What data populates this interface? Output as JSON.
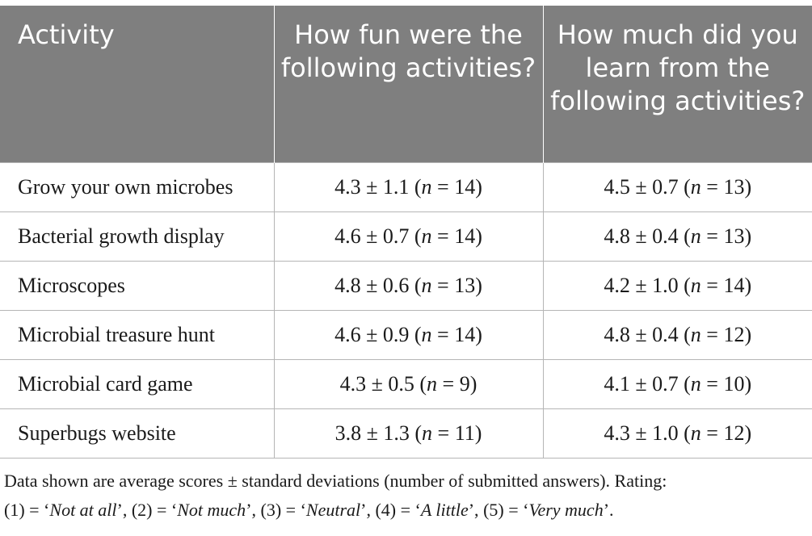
{
  "table": {
    "headers": [
      "Activity",
      "How fun were the following activities?",
      "How much did you learn from the following activities?"
    ],
    "rows": [
      {
        "activity": "Grow your own microbes",
        "fun": {
          "value": "4.3 ± 1.1 (",
          "n": "n",
          "count": " = 14)"
        },
        "learn": {
          "value": "4.5 ± 0.7 (",
          "n": "n",
          "count": " = 13)"
        }
      },
      {
        "activity": "Bacterial growth display",
        "fun": {
          "value": "4.6 ± 0.7 (",
          "n": "n",
          "count": " = 14)"
        },
        "learn": {
          "value": "4.8 ± 0.4 (",
          "n": "n",
          "count": " = 13)"
        }
      },
      {
        "activity": "Microscopes",
        "fun": {
          "value": "4.8 ± 0.6 (",
          "n": "n",
          "count": " = 13)"
        },
        "learn": {
          "value": "4.2 ± 1.0 (",
          "n": "n",
          "count": " = 14)"
        }
      },
      {
        "activity": "Microbial treasure hunt",
        "fun": {
          "value": "4.6 ± 0.9 (",
          "n": "n",
          "count": " = 14)"
        },
        "learn": {
          "value": "4.8 ± 0.4 (",
          "n": "n",
          "count": " = 12)"
        }
      },
      {
        "activity": "Microbial card game",
        "fun": {
          "value": "4.3 ± 0.5 (",
          "n": "n",
          "count": " = 9)"
        },
        "learn": {
          "value": "4.1 ± 0.7 (",
          "n": "n",
          "count": " = 10)"
        }
      },
      {
        "activity": "Superbugs website",
        "fun": {
          "value": "3.8 ± 1.3 (",
          "n": "n",
          "count": " = 11)"
        },
        "learn": {
          "value": "4.3 ± 1.0 (",
          "n": "n",
          "count": " = 12)"
        }
      }
    ]
  },
  "footnote": {
    "line1": "Data shown are average scores ± standard deviations (number of submitted answers). Rating:",
    "scale": [
      {
        "code": "(1) = ‘",
        "label": "Not at all",
        "close": "’, "
      },
      {
        "code": "(2) = ‘",
        "label": "Not much",
        "close": "’, "
      },
      {
        "code": "(3) = ‘",
        "label": "Neutral",
        "close": "’, "
      },
      {
        "code": "(4) = ‘",
        "label": "A little",
        "close": "’, "
      },
      {
        "code": "(5) = ‘",
        "label": "Very much",
        "close": "’."
      }
    ]
  },
  "colors": {
    "header_background": "#7f7f7f",
    "header_text": "#ffffff",
    "grid_lines": "#b5b5b5"
  }
}
